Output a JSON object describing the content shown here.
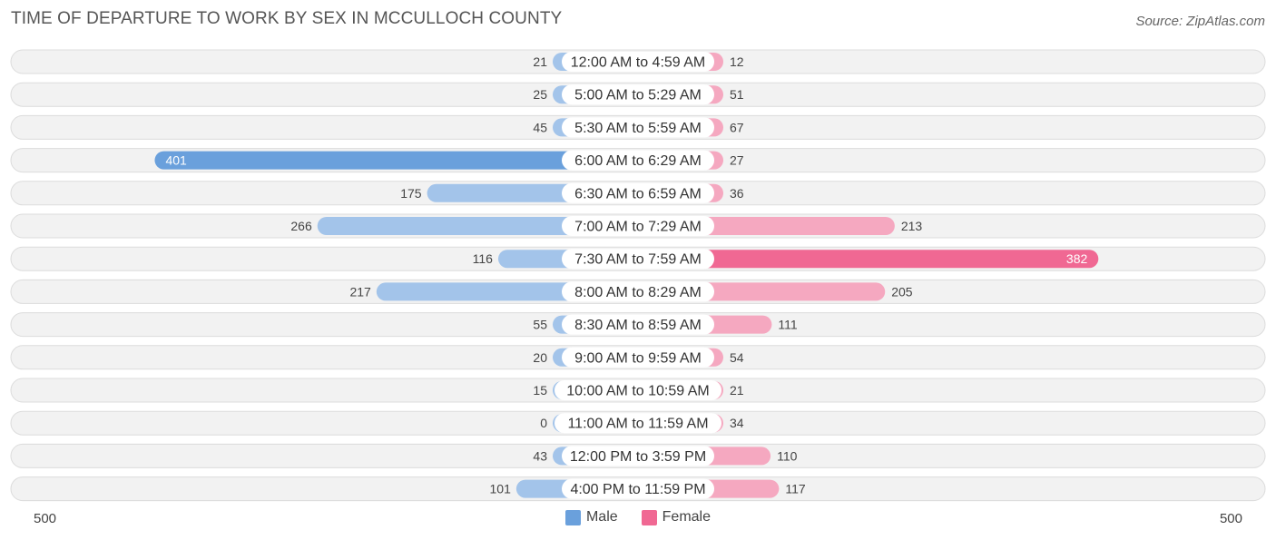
{
  "title": "TIME OF DEPARTURE TO WORK BY SEX IN MCCULLOCH COUNTY",
  "source": "Source: ZipAtlas.com",
  "axis": {
    "left_label": "500",
    "right_label": "500"
  },
  "colors": {
    "male": "#a3c4ea",
    "male_strong": "#6aa0dc",
    "female": "#f5a8c0",
    "female_strong": "#f06893",
    "row_bg": "#f2f2f2",
    "row_border": "#dcdcdc"
  },
  "chart_data": {
    "type": "bar",
    "orientation": "diverging-horizontal",
    "title": "TIME OF DEPARTURE TO WORK BY SEX IN MCCULLOCH COUNTY",
    "xlim": [
      -500,
      500
    ],
    "categories": [
      "12:00 AM to 4:59 AM",
      "5:00 AM to 5:29 AM",
      "5:30 AM to 5:59 AM",
      "6:00 AM to 6:29 AM",
      "6:30 AM to 6:59 AM",
      "7:00 AM to 7:29 AM",
      "7:30 AM to 7:59 AM",
      "8:00 AM to 8:29 AM",
      "8:30 AM to 8:59 AM",
      "9:00 AM to 9:59 AM",
      "10:00 AM to 10:59 AM",
      "11:00 AM to 11:59 AM",
      "12:00 PM to 3:59 PM",
      "4:00 PM to 11:59 PM"
    ],
    "series": [
      {
        "name": "Male",
        "values": [
          21,
          25,
          45,
          401,
          175,
          266,
          116,
          217,
          55,
          20,
          15,
          0,
          43,
          101
        ]
      },
      {
        "name": "Female",
        "values": [
          12,
          51,
          67,
          27,
          36,
          213,
          382,
          205,
          111,
          54,
          21,
          34,
          110,
          117
        ]
      }
    ],
    "legend": [
      "Male",
      "Female"
    ],
    "legend_position": "bottom-center"
  }
}
